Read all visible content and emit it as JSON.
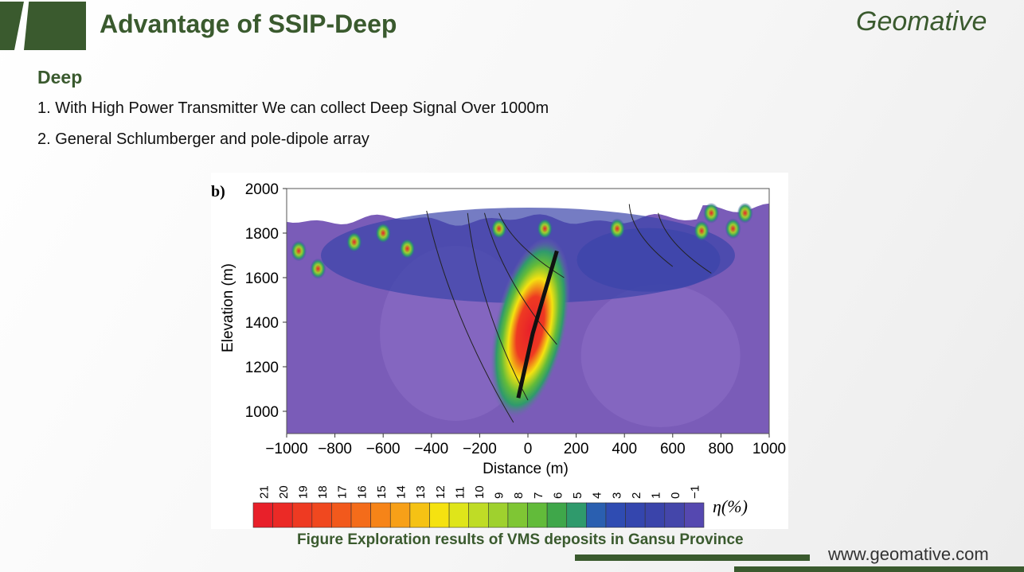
{
  "header": {
    "title": "Advantage of SSIP-Deep",
    "logo": "Geomative"
  },
  "section": {
    "subtitle": "Deep",
    "items": [
      "1. With High Power Transmitter We can collect Deep Signal Over 1000m",
      "2. General Schlumberger and pole-dipole array"
    ]
  },
  "figure": {
    "panel_label": "b)",
    "caption": "Figure Exploration results of VMS deposits in Gansu Province",
    "chart_data": {
      "type": "heatmap",
      "xlabel": "Distance (m)",
      "ylabel": "Elevation (m)",
      "xlim": [
        -1000,
        1000
      ],
      "ylim": [
        900,
        2000
      ],
      "xticks": [
        -1000,
        -800,
        -600,
        -400,
        -200,
        0,
        200,
        400,
        600,
        800,
        1000
      ],
      "yticks": [
        1000,
        1200,
        1400,
        1600,
        1800,
        2000
      ],
      "colorbar": {
        "label": "η(%)",
        "ticks": [
          21,
          20,
          19,
          18,
          17,
          16,
          15,
          14,
          13,
          12,
          11,
          10,
          9,
          8,
          7,
          6,
          5,
          4,
          3,
          2,
          1,
          0,
          -1
        ],
        "colors": [
          "#e8202a",
          "#eb2a26",
          "#ee3a22",
          "#f0481f",
          "#f2591c",
          "#f46c1a",
          "#f68418",
          "#f7a018",
          "#f5c214",
          "#f5e210",
          "#dfe51a",
          "#bfdc26",
          "#9fd12e",
          "#7fc634",
          "#62bb3a",
          "#3fa74a",
          "#2f9a6c",
          "#2a5fb0",
          "#2f4cb2",
          "#3446ae",
          "#3a44aa",
          "#4446aa",
          "#5548b0",
          "#7250b8"
        ]
      },
      "background_color": "#7a5cb8",
      "anomaly": {
        "x_center": 0,
        "elevation_top": 1700,
        "elevation_bottom": 1050,
        "peak": 21
      }
    }
  },
  "footer": {
    "url": "www.geomative.com"
  }
}
